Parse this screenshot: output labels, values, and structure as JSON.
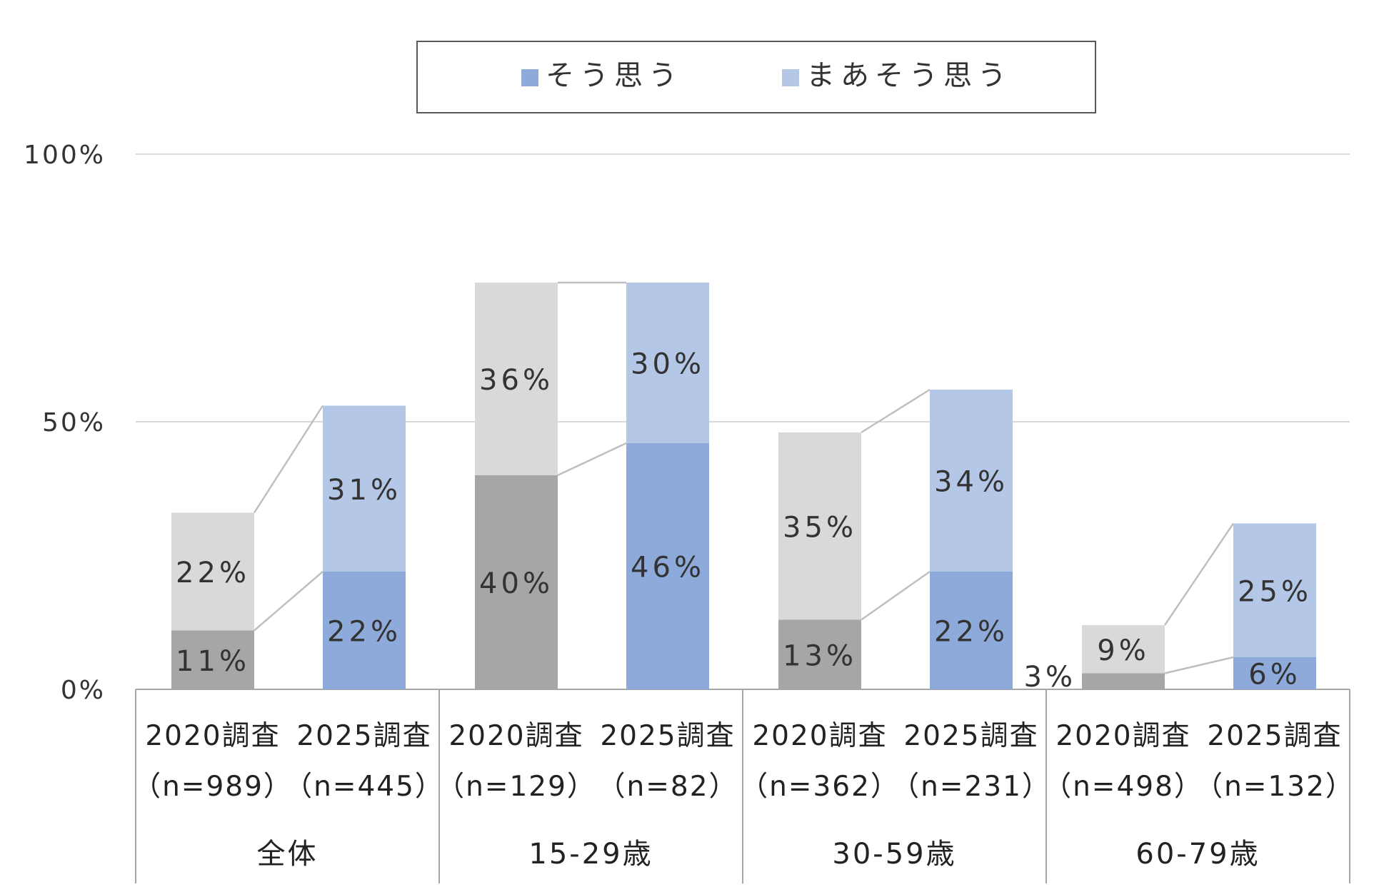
{
  "chart_data": {
    "type": "bar",
    "stacked": true,
    "y_ticks": [
      "0%",
      "50%",
      "100%"
    ],
    "ylim": [
      0,
      100
    ],
    "grid": true,
    "legend_position": "top",
    "legend": [
      {
        "name": "そう思う",
        "color": "#8eaadb"
      },
      {
        "name": "まあそう思う",
        "color": "#b4c7e7"
      }
    ],
    "groups": [
      {
        "label": "全体",
        "bars": [
          {
            "year": "2020調査",
            "n": "（n=989）",
            "values": [
              11,
              22
            ],
            "labels": [
              "11%",
              "22%"
            ],
            "colors": [
              "#a6a6a6",
              "#d9d9d9"
            ]
          },
          {
            "year": "2025調査",
            "n": "（n=445）",
            "values": [
              22,
              31
            ],
            "labels": [
              "22%",
              "31%"
            ],
            "colors": [
              "#8eaadb",
              "#b4c7e7"
            ]
          }
        ]
      },
      {
        "label": "15-29歳",
        "bars": [
          {
            "year": "2020調査",
            "n": "（n=129）",
            "values": [
              40,
              36
            ],
            "labels": [
              "40%",
              "36%"
            ],
            "colors": [
              "#a6a6a6",
              "#d9d9d9"
            ]
          },
          {
            "year": "2025調査",
            "n": "（n=82）",
            "values": [
              46,
              30
            ],
            "labels": [
              "46%",
              "30%"
            ],
            "colors": [
              "#8eaadb",
              "#b4c7e7"
            ]
          }
        ]
      },
      {
        "label": "30-59歳",
        "bars": [
          {
            "year": "2020調査",
            "n": "（n=362）",
            "values": [
              13,
              35
            ],
            "labels": [
              "13%",
              "35%"
            ],
            "colors": [
              "#a6a6a6",
              "#d9d9d9"
            ]
          },
          {
            "year": "2025調査",
            "n": "（n=231）",
            "values": [
              22,
              34
            ],
            "labels": [
              "22%",
              "34%"
            ],
            "colors": [
              "#8eaadb",
              "#b4c7e7"
            ]
          }
        ]
      },
      {
        "label": "60-79歳",
        "bars": [
          {
            "year": "2020調査",
            "n": "（n=498）",
            "values": [
              3,
              9
            ],
            "labels": [
              "3%",
              "9%"
            ],
            "colors": [
              "#a6a6a6",
              "#d9d9d9"
            ]
          },
          {
            "year": "2025調査",
            "n": "（n=132）",
            "values": [
              6,
              25
            ],
            "labels": [
              "6%",
              "25%"
            ],
            "colors": [
              "#8eaadb",
              "#b4c7e7"
            ]
          }
        ]
      }
    ],
    "connector_color": "#bfbfbf",
    "gridline_color": "#d9d9d9",
    "axis_color": "#a6a6a6"
  }
}
